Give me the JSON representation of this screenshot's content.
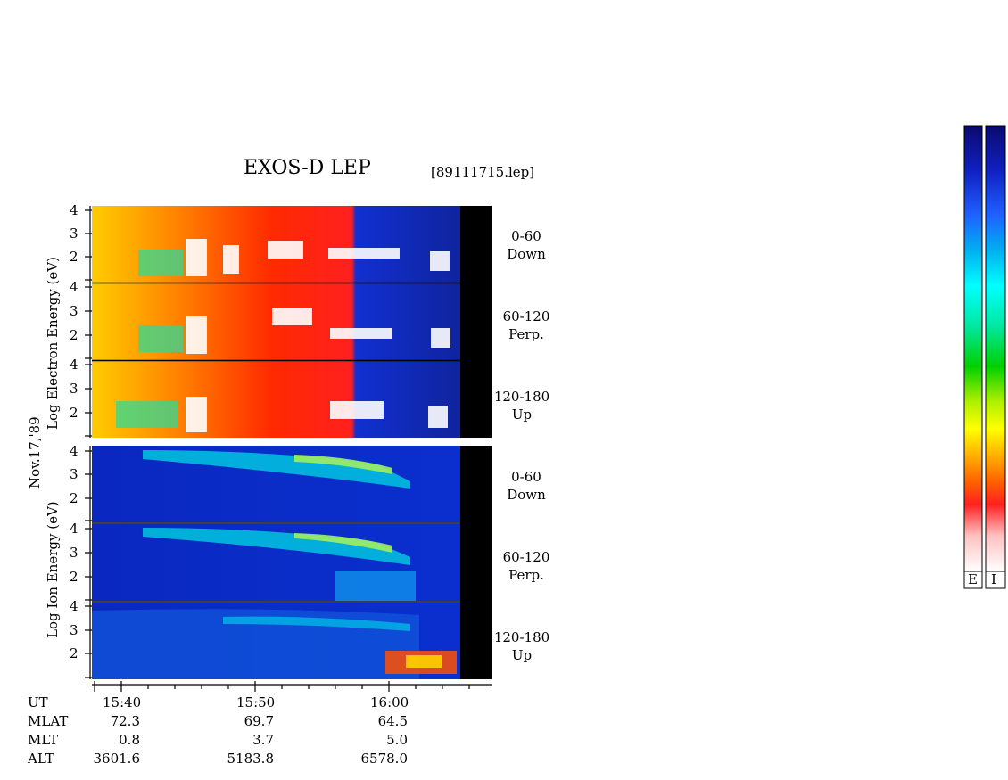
{
  "chart_data": {
    "type": "heatmap",
    "title": "EXOS-D LEP",
    "file_label": "[89111715.lep]",
    "date_label": "Nov.17,'89",
    "electron_ylabel": "Log Electron Energy (eV)",
    "ion_ylabel": "Log Ion Energy (eV)",
    "y_ticks": [
      "4",
      "3",
      "2"
    ],
    "y_ticks_low": [
      "4",
      "3",
      "2"
    ],
    "electron_panels": [
      {
        "range": "0-60",
        "direction": "Down"
      },
      {
        "range": "60-120",
        "direction": "Perp."
      },
      {
        "range": "120-180",
        "direction": "Up"
      }
    ],
    "ion_panels": [
      {
        "range": "0-60",
        "direction": "Down"
      },
      {
        "range": "60-120",
        "direction": "Perp."
      },
      {
        "range": "120-180",
        "direction": "Up"
      }
    ],
    "x_axis": {
      "ut": {
        "label": "UT",
        "values": [
          "15:40",
          "15:50",
          "16:00"
        ]
      },
      "mlat": {
        "label": "MLAT",
        "values": [
          "72.3",
          "69.7",
          "64.5"
        ]
      },
      "mlt": {
        "label": "MLT",
        "values": [
          "0.8",
          "3.7",
          "5.0"
        ]
      },
      "alt": {
        "label": "ALT",
        "values": [
          "3601.6",
          "5183.8",
          "6578.0"
        ]
      }
    },
    "colorbars": [
      {
        "label": "E"
      },
      {
        "label": "I"
      }
    ],
    "colorscale": [
      "#0a0a6e",
      "#1030d0",
      "#2070ff",
      "#00d8ff",
      "#00e8a0",
      "#00d000",
      "#a0e000",
      "#ffff00",
      "#ffb000",
      "#ff6000",
      "#ff0000",
      "#ffa0a0",
      "#ffffff"
    ]
  }
}
